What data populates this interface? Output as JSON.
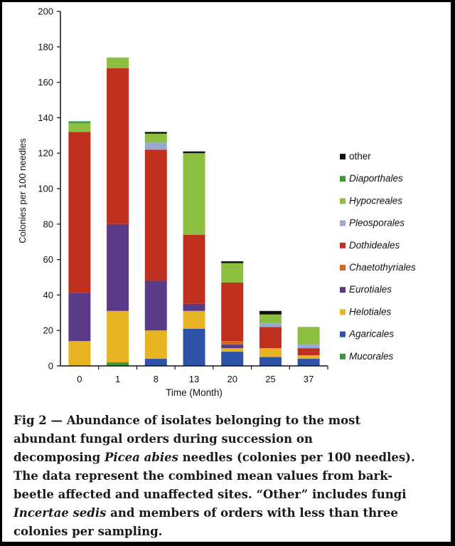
{
  "chart_data": {
    "type": "bar",
    "stacked": true,
    "xlabel": "Time (Month)",
    "ylabel": "Colonies per 100 needles",
    "ylim": [
      0,
      200
    ],
    "yticks": [
      0,
      20,
      40,
      60,
      80,
      100,
      120,
      140,
      160,
      180,
      200
    ],
    "categories": [
      "0",
      "1",
      "8",
      "13",
      "20",
      "25",
      "37"
    ],
    "legend_position": "right",
    "series": [
      {
        "name": "Mucorales",
        "italic": true,
        "color": "#3a9a3a",
        "values": [
          0,
          2,
          0,
          0,
          0,
          0,
          0
        ]
      },
      {
        "name": "Agaricales",
        "italic": true,
        "color": "#2d53a8",
        "values": [
          0,
          0,
          4,
          21,
          8,
          5,
          4
        ]
      },
      {
        "name": "Helotiales",
        "italic": true,
        "color": "#e7b424",
        "values": [
          14,
          29,
          16,
          10,
          2,
          5,
          2
        ]
      },
      {
        "name": "Eurotiales",
        "italic": true,
        "color": "#5a3b87",
        "values": [
          27,
          49,
          28,
          4,
          2,
          0,
          0
        ]
      },
      {
        "name": "Chaetothyriales",
        "italic": true,
        "color": "#d2691e",
        "values": [
          0,
          0,
          0,
          0,
          2,
          0,
          0
        ]
      },
      {
        "name": "Dothideales",
        "italic": true,
        "color": "#c0301f",
        "values": [
          91,
          88,
          74,
          39,
          33,
          12,
          4
        ]
      },
      {
        "name": "Pleosporales",
        "italic": true,
        "color": "#9aa8d2",
        "values": [
          0,
          0,
          4,
          0,
          0,
          2,
          2
        ]
      },
      {
        "name": "Hypocreales",
        "italic": true,
        "color": "#8cbf3f",
        "values": [
          5,
          6,
          5,
          46,
          11,
          5,
          10
        ]
      },
      {
        "name": "Diaporthales",
        "italic": true,
        "color": "#3a9a3a",
        "values": [
          1,
          0,
          0,
          0,
          0,
          0,
          0
        ]
      },
      {
        "name": "other",
        "italic": false,
        "color": "#111111",
        "values": [
          0,
          0,
          1,
          1,
          1,
          2,
          0
        ]
      }
    ]
  },
  "caption": {
    "l1": "Fig 2 — Abundance of isolates belonging to the most",
    "l2": "abundant fungal orders during succession on",
    "l3a": "decomposing ",
    "l3b": "Picea abies",
    "l3c": " needles (colonies per 100 needles).",
    "l4": "The data represent the combined mean values from bark-",
    "l5": "beetle affected and unaffected sites. “Other” includes fungi",
    "l6a": "Incertae sedis",
    "l6b": " and members of orders with less than three",
    "l7": "colonies per sampling."
  }
}
